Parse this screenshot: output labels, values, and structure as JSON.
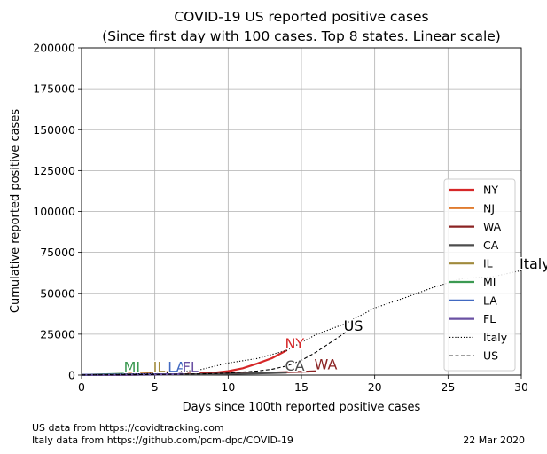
{
  "chart_data": {
    "type": "line",
    "title_line1": "COVID-19 US reported positive cases",
    "title_line2": "(Since first day with 100 cases. Top 8 states. Linear scale)",
    "xlabel": "Days since 100th reported positive cases",
    "ylabel": "Cumulative reported positive cases",
    "xlim": [
      0,
      30
    ],
    "ylim": [
      0,
      200000
    ],
    "xticks": [
      0,
      5,
      10,
      15,
      20,
      25,
      30
    ],
    "yticks": [
      0,
      25000,
      50000,
      75000,
      100000,
      125000,
      150000,
      175000,
      200000
    ],
    "grid": true,
    "legend_position": "center-right",
    "series": [
      {
        "name": "NY",
        "color": "#d62728",
        "style": "solid",
        "x": [
          0,
          1,
          2,
          3,
          4,
          5,
          6,
          7,
          8,
          9,
          10,
          11,
          12,
          13,
          14
        ],
        "y": [
          105,
          142,
          173,
          216,
          325,
          421,
          524,
          729,
          950,
          1374,
          2382,
          4152,
          7102,
          10356,
          15168
        ],
        "end_label": "NY",
        "label_x": 14,
        "label_y": 15168
      },
      {
        "name": "NJ",
        "color": "#e07b2e",
        "style": "solid",
        "x": [
          0,
          1,
          2,
          3,
          4,
          5,
          6
        ],
        "y": [
          178,
          267,
          427,
          742,
          890,
          1327,
          1914
        ],
        "end_label": "",
        "label_x": 6,
        "label_y": 1914
      },
      {
        "name": "WA",
        "color": "#8b2323",
        "style": "solid",
        "x": [
          0,
          1,
          2,
          3,
          4,
          5,
          6,
          7,
          8,
          9,
          10,
          11,
          12,
          13,
          14,
          15,
          16
        ],
        "y": [
          102,
          122,
          162,
          270,
          337,
          442,
          568,
          642,
          769,
          904,
          1012,
          1187,
          1376,
          1524,
          1793,
          1996,
          2328
        ],
        "end_label": "WA",
        "label_x": 16,
        "label_y": 2328
      },
      {
        "name": "CA",
        "color": "#4d4d4d",
        "style": "solid",
        "x": [
          0,
          1,
          2,
          3,
          4,
          5,
          6,
          7,
          8,
          9,
          10,
          11,
          12,
          13,
          14
        ],
        "y": [
          114,
          133,
          157,
          177,
          202,
          247,
          320,
          392,
          472,
          557,
          698,
          900,
          1063,
          1279,
          1536
        ],
        "end_label": "CA",
        "label_x": 14,
        "label_y": 1536
      },
      {
        "name": "IL",
        "color": "#a08a3c",
        "style": "solid",
        "x": [
          0,
          1,
          2,
          3,
          4,
          5
        ],
        "y": [
          105,
          160,
          288,
          422,
          585,
          753
        ],
        "end_label": "IL",
        "label_x": 5,
        "label_y": 753
      },
      {
        "name": "MI",
        "color": "#3c9a52",
        "style": "solid",
        "x": [
          0,
          1,
          2,
          3
        ],
        "y": [
          110,
          336,
          549,
          787
        ],
        "end_label": "MI",
        "label_x": 3,
        "label_y": 787
      },
      {
        "name": "LA",
        "color": "#4169c1",
        "style": "solid",
        "x": [
          0,
          1,
          2,
          3,
          4,
          5,
          6
        ],
        "y": [
          136,
          196,
          257,
          347,
          479,
          585,
          837
        ],
        "end_label": "LA",
        "label_x": 6,
        "label_y": 837
      },
      {
        "name": "FL",
        "color": "#6a51a3",
        "style": "solid",
        "x": [
          0,
          1,
          2,
          3,
          4,
          5,
          6,
          7
        ],
        "y": [
          100,
          115,
          155,
          216,
          314,
          390,
          563,
          763
        ],
        "end_label": "FL",
        "label_x": 7,
        "label_y": 763
      },
      {
        "name": "Italy",
        "color": "#000000",
        "style": "dotted",
        "x": [
          0,
          2,
          4,
          6,
          8,
          10,
          12,
          14,
          16,
          18,
          20,
          22,
          24,
          26,
          28,
          30
        ],
        "y": [
          150,
          322,
          650,
          1577,
          3089,
          7375,
          10149,
          15113,
          24747,
          31506,
          41035,
          47021,
          53578,
          59138,
          60000,
          63927
        ],
        "end_label": "Italy",
        "label_x": 30,
        "label_y": 63927
      },
      {
        "name": "US",
        "color": "#000000",
        "style": "dashed",
        "x": [
          0,
          2,
          4,
          6,
          8,
          10,
          12,
          13,
          14,
          15,
          16,
          17,
          18
        ],
        "y": [
          100,
          150,
          250,
          450,
          650,
          1200,
          2500,
          3600,
          5600,
          9000,
          14000,
          20000,
          26000
        ],
        "end_label": "US",
        "label_x": 18,
        "label_y": 26000
      }
    ]
  },
  "footer": {
    "source_us": "US data from https://covidtracking.com",
    "source_italy": "Italy data from https://github.com/pcm-dpc/COVID-19",
    "date": "22 Mar 2020"
  }
}
